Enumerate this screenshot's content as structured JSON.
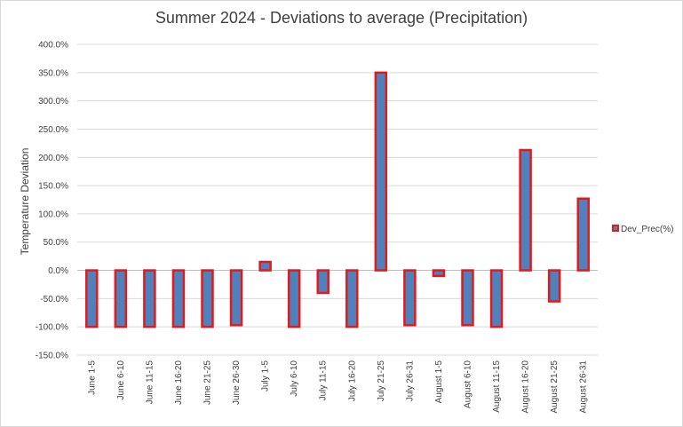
{
  "chart_data": {
    "type": "bar",
    "title": "Summer 2024 - Deviations to average (Precipitation)",
    "ylabel": "Temperature  Deviation",
    "xlabel": "",
    "ylim": [
      -150,
      400
    ],
    "ytick_step": 50,
    "ytick_suffix": "%",
    "grid": true,
    "legend_position": "right",
    "categories": [
      "June 1-5",
      "June 6-10",
      "June 11-15",
      "June 16-20",
      "June 21-25",
      "June 26-30",
      "July 1-5",
      "July 6-10",
      "July 11-15",
      "July 16-20",
      "July 21-25",
      "July 26-31",
      "August 1-5",
      "August 6-10",
      "August 11-15",
      "August 16-20",
      "August 21-25",
      "August 26-31"
    ],
    "series": [
      {
        "name": "Dev_Prec(%)",
        "values": [
          -100,
          -100,
          -100,
          -100,
          -100,
          -97,
          15,
          -100,
          -40,
          -100,
          350,
          -97,
          -10,
          -97,
          -100,
          213,
          -55,
          127
        ],
        "fill": "#4f81bd",
        "stroke": "#e31a1c"
      }
    ]
  }
}
